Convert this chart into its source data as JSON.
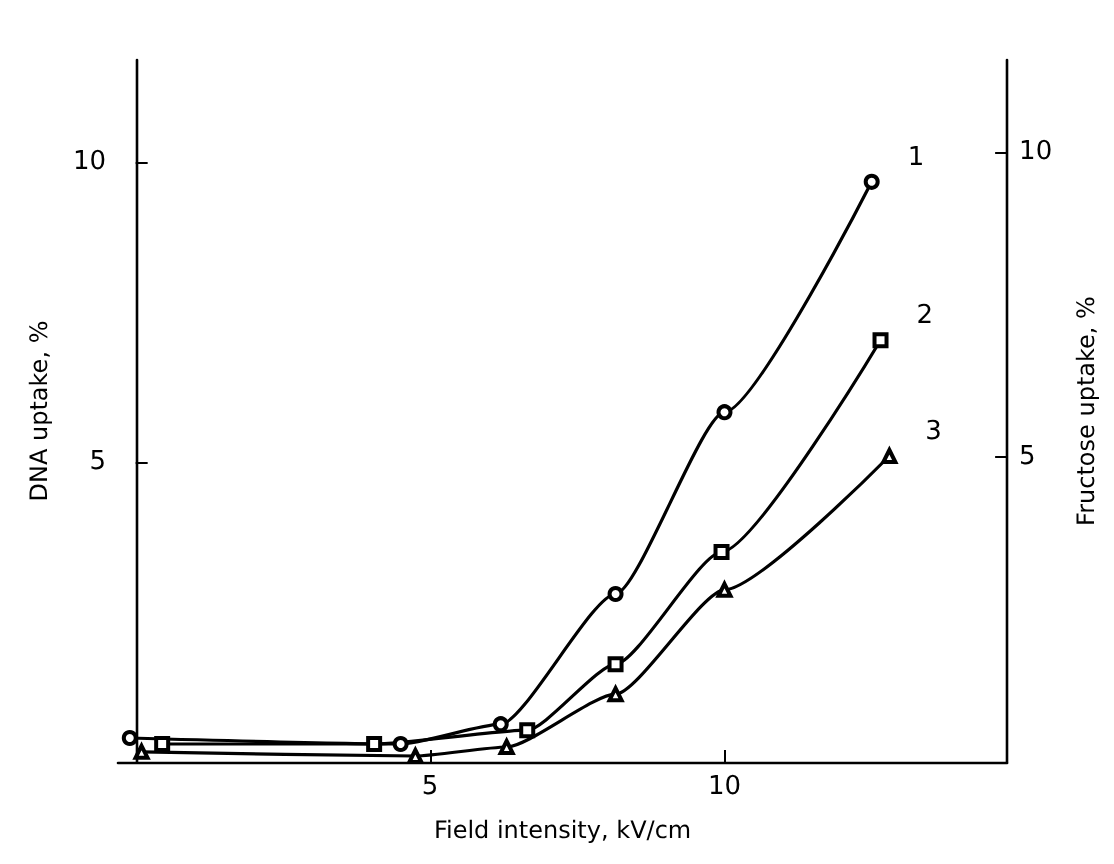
{
  "chart_data": {
    "type": "line",
    "xlabel": "Field intensity, kV/cm",
    "ylabel": "DNA uptake, %",
    "y2label": "Fructose uptake, %",
    "xlim": [
      -0.3,
      14.8
    ],
    "xticks": [
      5,
      10
    ],
    "ylim": [
      0,
      11.7
    ],
    "yticks": [
      5,
      10
    ],
    "y2lim": [
      0,
      11.5
    ],
    "y2ticks": [
      5,
      10
    ],
    "grid": false,
    "legend": false,
    "line_style": "solid",
    "series": [
      {
        "name": "1",
        "color": "#000000",
        "marker": "circle",
        "x": [
          -0.1,
          4.5,
          6.2,
          8.15,
          10.0,
          12.5
        ],
        "values": [
          0.4,
          0.3,
          0.63,
          2.8,
          5.83,
          9.67
        ]
      },
      {
        "name": "2",
        "color": "#000000",
        "marker": "square",
        "x": [
          0.45,
          4.05,
          6.65,
          8.15,
          9.95,
          12.65
        ],
        "values": [
          0.3,
          0.3,
          0.53,
          1.63,
          3.5,
          7.03
        ]
      },
      {
        "name": "3",
        "color": "#000000",
        "marker": "triangle",
        "x": [
          0.1,
          4.75,
          6.3,
          8.15,
          10.0,
          12.8
        ],
        "values": [
          0.17,
          0.1,
          0.25,
          1.13,
          2.87,
          5.1
        ]
      }
    ]
  }
}
